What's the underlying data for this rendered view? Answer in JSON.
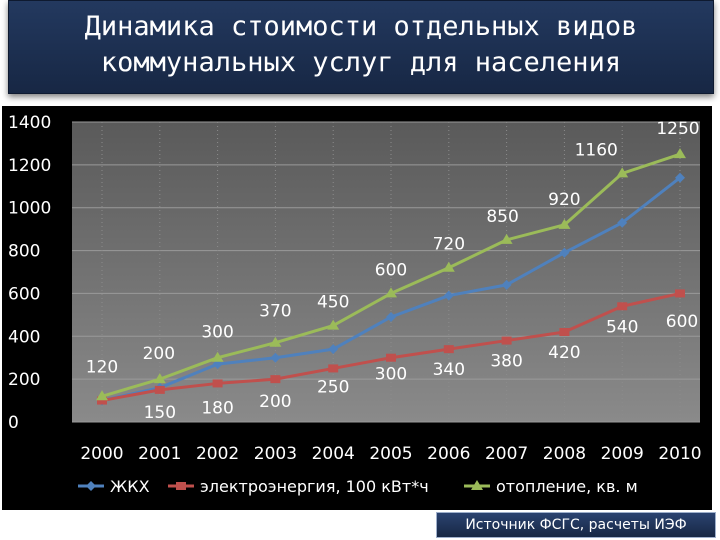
{
  "page": {
    "title_line1": "Динамика стоимости отдельных видов",
    "title_line2": "коммунальных услуг для населения",
    "source": "Источник ФСГС, расчеты ИЭФ"
  },
  "chart_data": {
    "type": "line",
    "x": [
      "2000",
      "2001",
      "2002",
      "2003",
      "2004",
      "2005",
      "2006",
      "2007",
      "2008",
      "2009",
      "2010"
    ],
    "ylim": [
      0,
      1400
    ],
    "yticks": [
      "0",
      "200",
      "400",
      "600",
      "800",
      "1000",
      "1200",
      "1400"
    ],
    "grid": true,
    "legend_position": "bottom",
    "series": [
      {
        "name": "ЖКХ",
        "color": "#4f81bd",
        "marker": "diamond",
        "values": [
          100,
          160,
          270,
          300,
          340,
          490,
          590,
          640,
          790,
          930,
          1140
        ]
      },
      {
        "name": "электроэнергия, 100 кВт*ч",
        "color": "#c0504d",
        "marker": "square",
        "values": [
          100,
          150,
          180,
          200,
          250,
          300,
          340,
          380,
          420,
          540,
          600
        ],
        "labels": [
          "",
          "150",
          "180",
          "200",
          "250",
          "300",
          "340",
          "380",
          "420",
          "540",
          "600"
        ]
      },
      {
        "name": "отопление, кв. м",
        "color": "#9bbb59",
        "marker": "triangle",
        "values": [
          120,
          200,
          300,
          370,
          450,
          600,
          720,
          850,
          920,
          1160,
          1250
        ],
        "labels": [
          "120",
          "200",
          "300",
          "370",
          "450",
          "600",
          "720",
          "850",
          "920",
          "1160",
          "1250"
        ]
      }
    ]
  }
}
